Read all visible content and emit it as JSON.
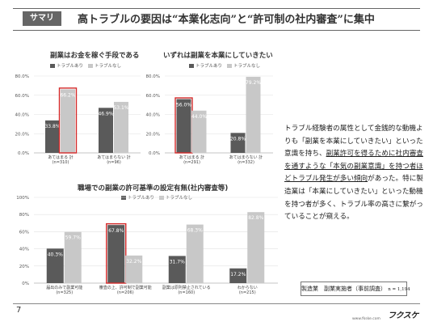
{
  "header": {
    "tag": "サマリ",
    "title": "高トラブルの要因は“本業化志向”と“許可制の社内審査”に集中"
  },
  "legend": {
    "with": "トラブルあり",
    "without": "トラブルなし"
  },
  "colors": {
    "with": "#5a5a5a",
    "without": "#c8c8c8",
    "highlight": "#d42a2a",
    "label_dark": "#ffffff",
    "label_light": "#ffffff"
  },
  "chart_data": [
    {
      "type": "bar",
      "title": "副業はお金を稼ぐ手段である",
      "categories": [
        "あてはまる 計",
        "あてはまらない 計"
      ],
      "sample_sizes": [
        "(n=310)",
        "(n=96)"
      ],
      "series": [
        {
          "name": "トラブルあり",
          "values": [
            33.8,
            46.9
          ]
        },
        {
          "name": "トラブルなし",
          "values": [
            66.2,
            53.1
          ]
        }
      ],
      "ylim": [
        0,
        80
      ],
      "yticks": [
        "0.0%",
        "20.0%",
        "40.0%",
        "60.0%",
        "80.0%"
      ],
      "highlight": {
        "category": 0,
        "series": 1
      }
    },
    {
      "type": "bar",
      "title": "いずれは副業を本業にしていきたい",
      "categories": [
        "あてはまる 計",
        "あてはまらない 計"
      ],
      "sample_sizes": [
        "(n=291)",
        "(n=332)"
      ],
      "series": [
        {
          "name": "トラブルあり",
          "values": [
            56.0,
            20.8
          ]
        },
        {
          "name": "トラブルなし",
          "values": [
            44.0,
            79.2
          ]
        }
      ],
      "ylim": [
        0,
        80
      ],
      "yticks": [
        "0.0%",
        "20.0%",
        "40.0%",
        "60.0%",
        "80.0%"
      ],
      "highlight": {
        "category": 0,
        "series": 0
      }
    },
    {
      "type": "bar",
      "title": "職場での副業の許可基準の設定有無(社内審査等)",
      "categories": [
        "届出のみで副業可能",
        "審査の上、許可制で副業可能",
        "副業は原則禁止されている",
        "わからない"
      ],
      "sample_sizes": [
        "(n=325)",
        "(n=206)",
        "(n=160)",
        "(n=215)"
      ],
      "series": [
        {
          "name": "トラブルあり",
          "values": [
            40.3,
            67.8,
            31.7,
            17.2
          ]
        },
        {
          "name": "トラブルなし",
          "values": [
            59.7,
            32.2,
            68.3,
            82.8
          ]
        }
      ],
      "ylim": [
        0,
        100
      ],
      "yticks": [
        "0%",
        "20%",
        "40%",
        "60%",
        "80%",
        "100%"
      ],
      "highlight": {
        "category": 1,
        "series": 0
      }
    }
  ],
  "summary": {
    "p1": "トラブル経験者の属性として金銭的な動機よりも「副業を本業にしていきたい」といった意識を持ち、",
    "u1": "副業許可を得るために社内審査を通すような「本気の副業意識」を持つ者ほどトラブル発生が多い傾向",
    "p2": "があった。特に製造業は「本業にしていきたい」といった動機を持つ者が多く、トラブル率の高さに繋がっていることが窺える。"
  },
  "note": {
    "label": "製造業　副業実施者（事前調査）",
    "n": "n = 1,194"
  },
  "footer": {
    "page": "7",
    "url": "www.fkske.com",
    "logo": "フクスケ"
  }
}
